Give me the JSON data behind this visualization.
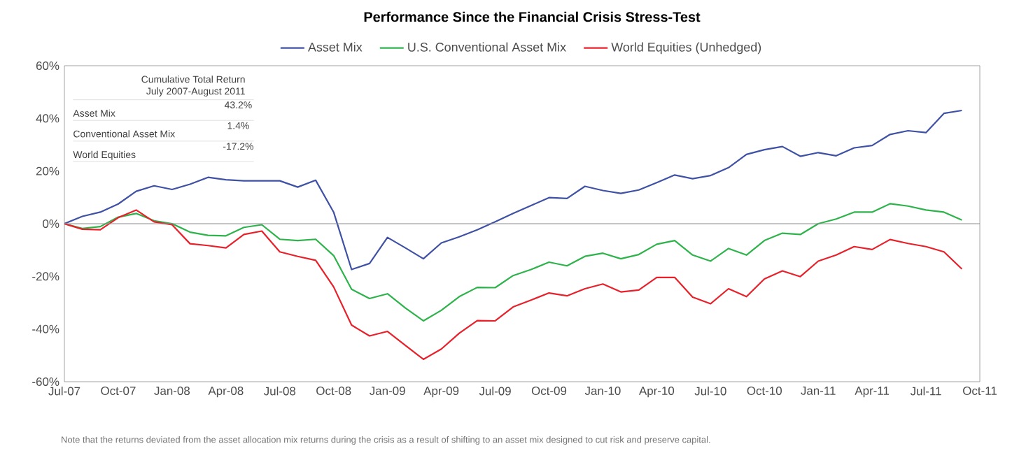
{
  "chart_data": {
    "type": "line",
    "title": "Performance Since the Financial Crisis Stress-Test",
    "x": [
      "2007-07",
      "2007-08",
      "2007-09",
      "2007-10",
      "2007-11",
      "2007-12",
      "2008-01",
      "2008-02",
      "2008-03",
      "2008-04",
      "2008-05",
      "2008-06",
      "2008-07",
      "2008-08",
      "2008-09",
      "2008-10",
      "2008-11",
      "2008-12",
      "2009-01",
      "2009-02",
      "2009-03",
      "2009-04",
      "2009-05",
      "2009-06",
      "2009-07",
      "2009-08",
      "2009-09",
      "2009-10",
      "2009-11",
      "2009-12",
      "2010-01",
      "2010-02",
      "2010-03",
      "2010-04",
      "2010-05",
      "2010-06",
      "2010-07",
      "2010-08",
      "2010-09",
      "2010-10",
      "2010-11",
      "2010-12",
      "2011-01",
      "2011-02",
      "2011-03",
      "2011-04",
      "2011-05",
      "2011-06",
      "2011-07",
      "2011-08",
      "2011-09"
    ],
    "series": [
      {
        "name": "Asset Mix",
        "color": "#3f51a5",
        "values": [
          0,
          2.8,
          4.4,
          7.5,
          12.3,
          14.4,
          13,
          15,
          17.6,
          16.7,
          16.3,
          16.3,
          16.3,
          13.9,
          16.5,
          4.4,
          -17.4,
          -15.1,
          -5.2,
          -9.2,
          -13.3,
          -7.3,
          -5,
          -2.3,
          0.7,
          3.9,
          6.9,
          9.9,
          9.6,
          14.2,
          12.6,
          11.5,
          12.8,
          15.6,
          18.5,
          17.1,
          18.3,
          21.3,
          26.3,
          28.1,
          29.3,
          25.6,
          27,
          25.8,
          28.8,
          29.7,
          33.9,
          35.3,
          34.6,
          41.9,
          43
        ]
      },
      {
        "name": "U.S. Conventional Asset Mix",
        "color": "#2db34a",
        "values": [
          0,
          -1.8,
          -1.1,
          2.5,
          3.9,
          1.1,
          0,
          -3.2,
          -4.4,
          -4.6,
          -1.4,
          -0.4,
          -5.9,
          -6.4,
          -5.9,
          -12.1,
          -24.9,
          -28.4,
          -26.6,
          -32,
          -36.9,
          -32.9,
          -27.7,
          -24.2,
          -24.3,
          -19.7,
          -17.4,
          -14.6,
          -16,
          -12.4,
          -11.2,
          -13.3,
          -11.7,
          -7.8,
          -6.4,
          -11.9,
          -14.2,
          -9.4,
          -11.9,
          -6.4,
          -3.6,
          -4.1,
          0,
          1.8,
          4.4,
          4.4,
          7.6,
          6.7,
          5.2,
          4.4,
          1.4
        ]
      },
      {
        "name": "World Equities (Unhedged)",
        "color": "#e8202a",
        "values": [
          0,
          -2.1,
          -2.3,
          2.3,
          5.2,
          0.7,
          -0.4,
          -7.6,
          -8.3,
          -9.2,
          -4.1,
          -2.8,
          -10.7,
          -12.4,
          -13.9,
          -24,
          -38.5,
          -42.6,
          -40.9,
          -46.2,
          -51.5,
          -47.6,
          -41.6,
          -36.8,
          -36.9,
          -31.6,
          -29,
          -26.3,
          -27.4,
          -24.7,
          -22.9,
          -25.9,
          -25.2,
          -20.4,
          -20.4,
          -27.9,
          -30.4,
          -24.7,
          -27.7,
          -21,
          -17.9,
          -20.1,
          -14.2,
          -11.9,
          -8.7,
          -9.8,
          -6,
          -7.5,
          -8.7,
          -10.7,
          -17.2
        ]
      }
    ],
    "xlim": [
      "2007-07",
      "2011-10"
    ],
    "xticks": [
      {
        "value": "2007-07",
        "label": "Jul-07"
      },
      {
        "value": "2007-10",
        "label": "Oct-07"
      },
      {
        "value": "2008-01",
        "label": "Jan-08"
      },
      {
        "value": "2008-04",
        "label": "Apr-08"
      },
      {
        "value": "2008-07",
        "label": "Jul-08"
      },
      {
        "value": "2008-10",
        "label": "Oct-08"
      },
      {
        "value": "2009-01",
        "label": "Jan-09"
      },
      {
        "value": "2009-04",
        "label": "Apr-09"
      },
      {
        "value": "2009-07",
        "label": "Jul-09"
      },
      {
        "value": "2009-10",
        "label": "Oct-09"
      },
      {
        "value": "2010-01",
        "label": "Jan-10"
      },
      {
        "value": "2010-04",
        "label": "Apr-10"
      },
      {
        "value": "2010-07",
        "label": "Jul-10"
      },
      {
        "value": "2010-10",
        "label": "Oct-10"
      },
      {
        "value": "2011-01",
        "label": "Jan-11"
      },
      {
        "value": "2011-04",
        "label": "Apr-11"
      },
      {
        "value": "2011-07",
        "label": "Jul-11"
      },
      {
        "value": "2011-10",
        "label": "Oct-11"
      }
    ],
    "ylim": [
      -60,
      60
    ],
    "yticks": [
      {
        "value": -60,
        "label": "-60%"
      },
      {
        "value": -40,
        "label": "-40%"
      },
      {
        "value": -20,
        "label": "-20%"
      },
      {
        "value": 0,
        "label": "0%"
      },
      {
        "value": 20,
        "label": "20%"
      },
      {
        "value": 40,
        "label": "40%"
      },
      {
        "value": 60,
        "label": "60%"
      }
    ],
    "ref_lines": [
      {
        "axis": "y",
        "value": 0
      }
    ],
    "legend": "top",
    "grid": false,
    "marker": "none",
    "line_style": "solid",
    "annotations": [
      "Cumulative Total Return",
      "July 2007-August 2011",
      "Asset Mix",
      "43.2%",
      "Conventional Asset Mix",
      "1.4%",
      "World Equities",
      "-17.2%",
      "Note that the returns deviated from the asset allocation mix returns during the crisis as a result of shifting to an asset mix designed to cut risk and preserve capital."
    ]
  }
}
